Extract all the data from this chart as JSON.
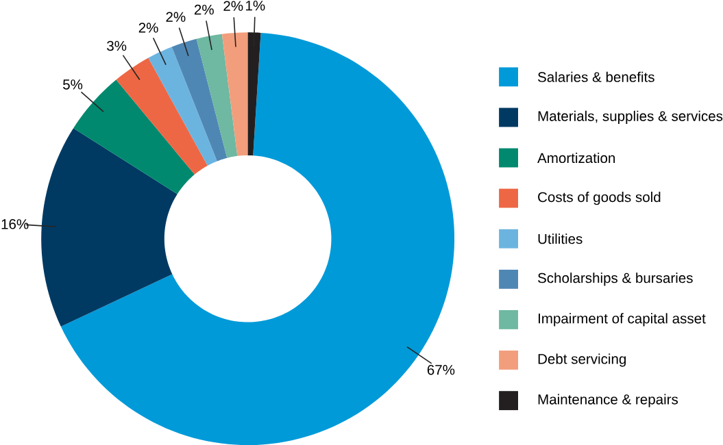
{
  "chart_data": {
    "type": "donut",
    "categories": [
      "Salaries & benefits",
      "Materials, supplies & services",
      "Amortization",
      "Costs of goods sold",
      "Utilities",
      "Scholarships & bursaries",
      "Impairment of capital asset",
      "Debt servicing",
      "Maintenance & repairs"
    ],
    "values": [
      67,
      16,
      5,
      3,
      2,
      2,
      2,
      2,
      1
    ],
    "value_labels": [
      "67%",
      "16%",
      "5%",
      "3%",
      "2%",
      "2%",
      "2%",
      "2%",
      "1%"
    ],
    "colors": [
      "#009ad9",
      "#003a63",
      "#00896e",
      "#ee6744",
      "#6cb4e0",
      "#4f87b4",
      "#6fb8a2",
      "#f29e7c",
      "#231f20"
    ],
    "legend": "right"
  }
}
